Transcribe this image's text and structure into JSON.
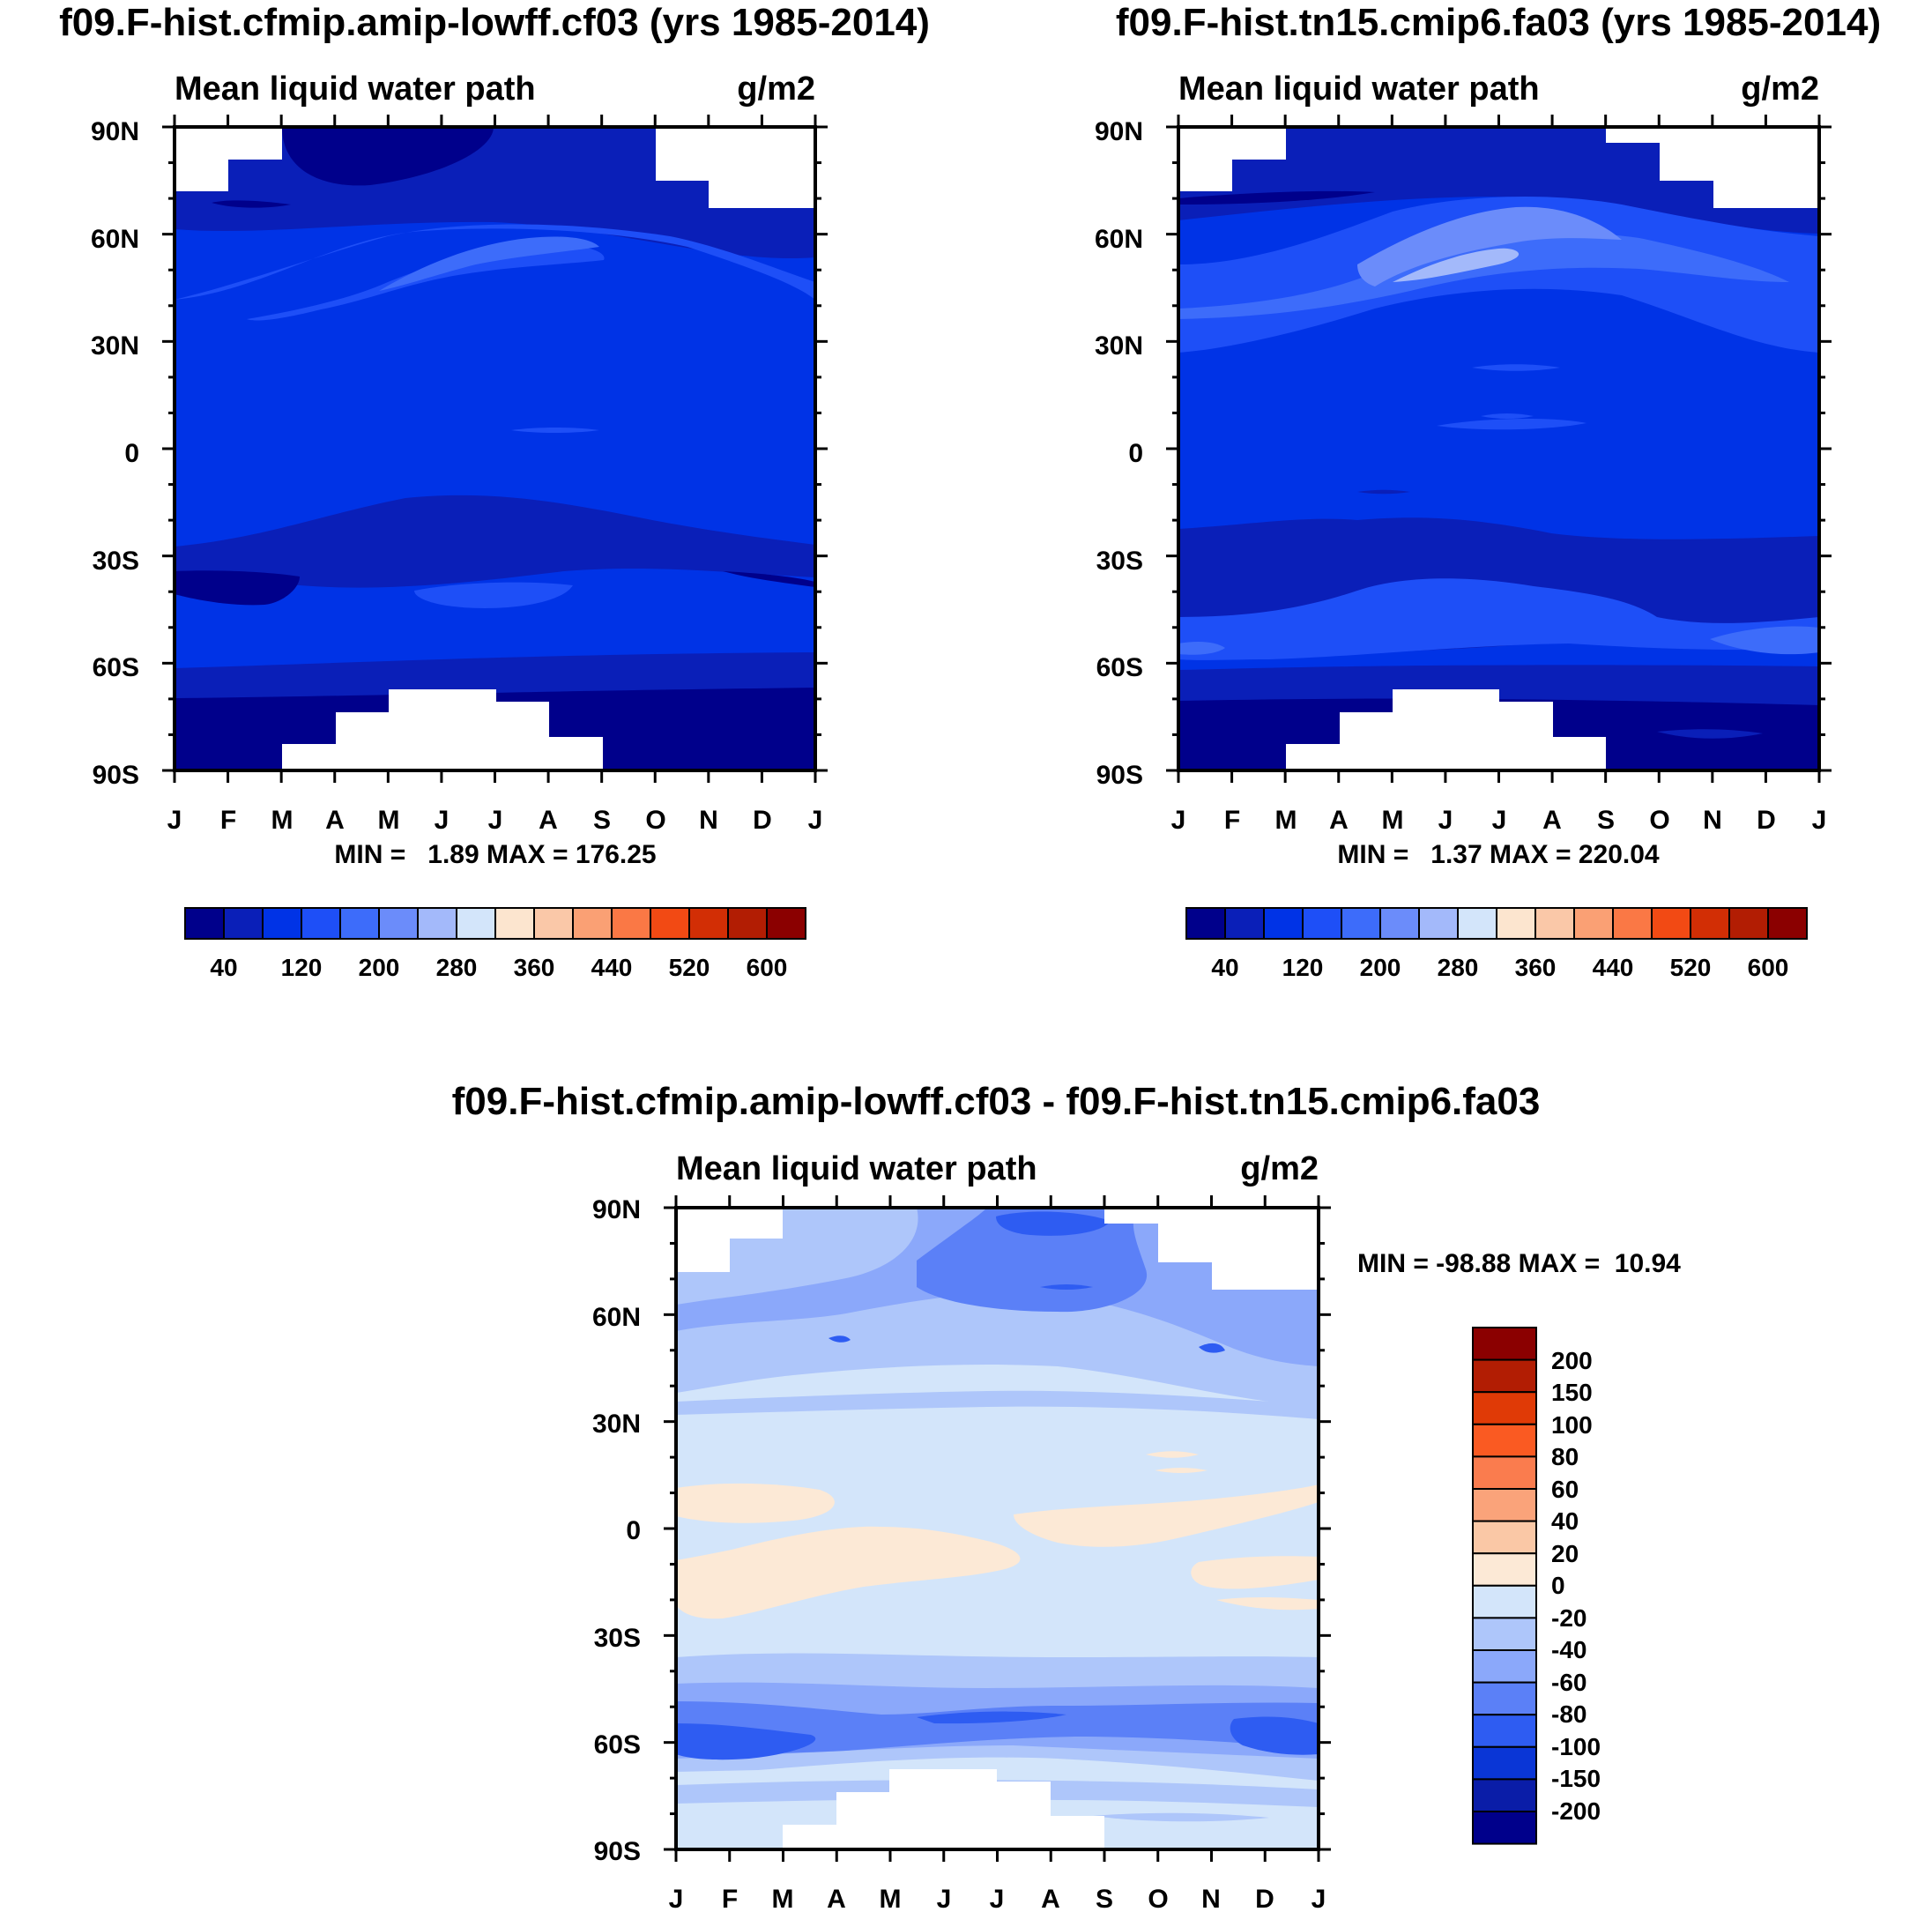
{
  "chart_data": [
    {
      "type": "heatmap",
      "title": "f09.F-hist.cfmip.amip-lowff.cf03 (yrs 1985-2014)",
      "left_label": "Mean liquid water path",
      "right_label": "g/m2",
      "xlabels": [
        "J",
        "F",
        "M",
        "A",
        "M",
        "J",
        "J",
        "A",
        "S",
        "O",
        "N",
        "D",
        "J"
      ],
      "ylabels": [
        "90N",
        "60N",
        "30N",
        "0",
        "30S",
        "60S",
        "90S"
      ],
      "stats": "MIN =   1.89 MAX = 176.25",
      "colorbar": {
        "orientation": "horizontal",
        "labels": [
          "40",
          "120",
          "200",
          "280",
          "360",
          "440",
          "520",
          "600"
        ],
        "colors": [
          "#00008B",
          "#0A1FB8",
          "#0033E6",
          "#1E4FF7",
          "#3D6CFA",
          "#6B8CFA",
          "#A3B9FA",
          "#D3E5FA",
          "#FCE5CF",
          "#FAC8A8",
          "#FAA074",
          "#FA7845",
          "#F24A14",
          "#D22E05",
          "#B21D03",
          "#8B0000"
        ]
      }
    },
    {
      "type": "heatmap",
      "title": "f09.F-hist.tn15.cmip6.fa03 (yrs 1985-2014)",
      "left_label": "Mean liquid water path",
      "right_label": "g/m2",
      "xlabels": [
        "J",
        "F",
        "M",
        "A",
        "M",
        "J",
        "J",
        "A",
        "S",
        "O",
        "N",
        "D",
        "J"
      ],
      "ylabels": [
        "90N",
        "60N",
        "30N",
        "0",
        "30S",
        "60S",
        "90S"
      ],
      "stats": "MIN =   1.37 MAX = 220.04",
      "colorbar": {
        "orientation": "horizontal",
        "labels": [
          "40",
          "120",
          "200",
          "280",
          "360",
          "440",
          "520",
          "600"
        ],
        "colors": [
          "#00008B",
          "#0A1FB8",
          "#0033E6",
          "#1E4FF7",
          "#3D6CFA",
          "#6B8CFA",
          "#A3B9FA",
          "#D3E5FA",
          "#FCE5CF",
          "#FAC8A8",
          "#FAA074",
          "#FA7845",
          "#F24A14",
          "#D22E05",
          "#B21D03",
          "#8B0000"
        ]
      }
    },
    {
      "type": "heatmap",
      "title": "f09.F-hist.cfmip.amip-lowff.cf03 - f09.F-hist.tn15.cmip6.fa03",
      "left_label": "Mean liquid water path",
      "right_label": "g/m2",
      "xlabels": [
        "J",
        "F",
        "M",
        "A",
        "M",
        "J",
        "J",
        "A",
        "S",
        "O",
        "N",
        "D",
        "J"
      ],
      "ylabels": [
        "90N",
        "60N",
        "30N",
        "0",
        "30S",
        "60S",
        "90S"
      ],
      "stats": "MIN = -98.88 MAX =  10.94",
      "colorbar": {
        "orientation": "vertical",
        "labels": [
          "200",
          "150",
          "100",
          "80",
          "60",
          "40",
          "20",
          "0",
          "-20",
          "-40",
          "-60",
          "-80",
          "-100",
          "-150",
          "-200"
        ],
        "colors": [
          "#8B0000",
          "#B21D03",
          "#E03A06",
          "#FA5A22",
          "#FA7C4E",
          "#FAA37A",
          "#FAC8A6",
          "#FCE9D6",
          "#D3E5FA",
          "#AEC6FA",
          "#8BA8FA",
          "#5B80F7",
          "#2E5CF2",
          "#0A36D6",
          "#0A1DA8",
          "#00008B"
        ]
      },
      "x_range": [
        "J",
        "J"
      ],
      "y_range": [
        "90S",
        "90N"
      ]
    }
  ]
}
